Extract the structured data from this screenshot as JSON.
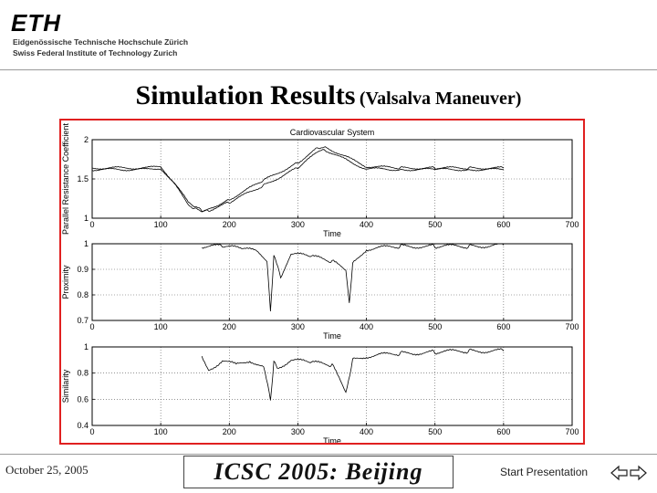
{
  "header": {
    "logo_mark": "ETH",
    "logo_line1": "Eidgenössische Technische Hochschule Zürich",
    "logo_line2": "Swiss Federal Institute of Technology Zurich"
  },
  "slide": {
    "title_main": "Simulation Results",
    "title_sub": "(Valsalva Maneuver)"
  },
  "footer": {
    "date": "October 25, 2005",
    "conference": "ICSC 2005: Beijing",
    "start_label": "Start Presentation"
  },
  "chart_data": [
    {
      "type": "line",
      "title": "Cardiovascular System",
      "xlabel": "Time",
      "ylabel": "Parallel Resistance Coefficient",
      "xlim": [
        0,
        700
      ],
      "ylim": [
        1,
        2
      ],
      "xticks": [
        0,
        100,
        200,
        300,
        400,
        500,
        600,
        700
      ],
      "yticks": [
        1,
        1.5,
        2
      ],
      "grid": true,
      "series": [
        {
          "x": [
            0,
            80,
            100,
            120,
            140,
            150,
            160,
            170,
            200,
            250,
            300,
            330,
            340,
            380,
            400,
            450,
            500,
            550,
            600
          ],
          "y": [
            1.64,
            1.64,
            1.66,
            1.45,
            1.2,
            1.14,
            1.1,
            1.12,
            1.24,
            1.48,
            1.71,
            1.9,
            1.91,
            1.74,
            1.66,
            1.64,
            1.64,
            1.64,
            1.64
          ]
        },
        {
          "x": [
            0,
            80,
            100,
            120,
            140,
            150,
            160,
            170,
            200,
            250,
            300,
            330,
            340,
            380,
            400,
            450,
            500,
            550,
            600
          ],
          "y": [
            1.62,
            1.62,
            1.64,
            1.43,
            1.18,
            1.12,
            1.08,
            1.1,
            1.2,
            1.42,
            1.64,
            1.85,
            1.87,
            1.7,
            1.63,
            1.62,
            1.62,
            1.62,
            1.62
          ]
        }
      ]
    },
    {
      "type": "line",
      "title": "",
      "xlabel": "Time",
      "ylabel": "Proximity",
      "xlim": [
        0,
        700
      ],
      "ylim": [
        0.7,
        1
      ],
      "xticks": [
        0,
        100,
        200,
        300,
        400,
        500,
        600,
        700
      ],
      "yticks": [
        0.7,
        0.8,
        0.9,
        1
      ],
      "grid": true,
      "series": [
        {
          "x": [
            160,
            190,
            220,
            240,
            255,
            260,
            265,
            275,
            290,
            320,
            350,
            370,
            375,
            380,
            400,
            450,
            500,
            550,
            600
          ],
          "y": [
            0.99,
            0.99,
            0.98,
            0.97,
            0.93,
            0.74,
            0.95,
            0.87,
            0.96,
            0.95,
            0.93,
            0.9,
            0.77,
            0.92,
            0.98,
            0.99,
            0.99,
            0.99,
            0.995
          ]
        }
      ]
    },
    {
      "type": "line",
      "title": "",
      "xlabel": "Time",
      "ylabel": "Similarity",
      "xlim": [
        0,
        700
      ],
      "ylim": [
        0.4,
        1
      ],
      "xticks": [
        0,
        100,
        200,
        300,
        400,
        500,
        600,
        700
      ],
      "yticks": [
        0.4,
        0.6,
        0.8,
        1
      ],
      "grid": true,
      "series": [
        {
          "x": [
            160,
            170,
            190,
            210,
            230,
            250,
            260,
            265,
            270,
            290,
            320,
            350,
            370,
            380,
            400,
            450,
            500,
            550,
            600
          ],
          "y": [
            0.94,
            0.82,
            0.9,
            0.86,
            0.9,
            0.84,
            0.6,
            0.88,
            0.84,
            0.9,
            0.88,
            0.86,
            0.66,
            0.9,
            0.93,
            0.95,
            0.96,
            0.97,
            0.97
          ]
        }
      ]
    }
  ]
}
